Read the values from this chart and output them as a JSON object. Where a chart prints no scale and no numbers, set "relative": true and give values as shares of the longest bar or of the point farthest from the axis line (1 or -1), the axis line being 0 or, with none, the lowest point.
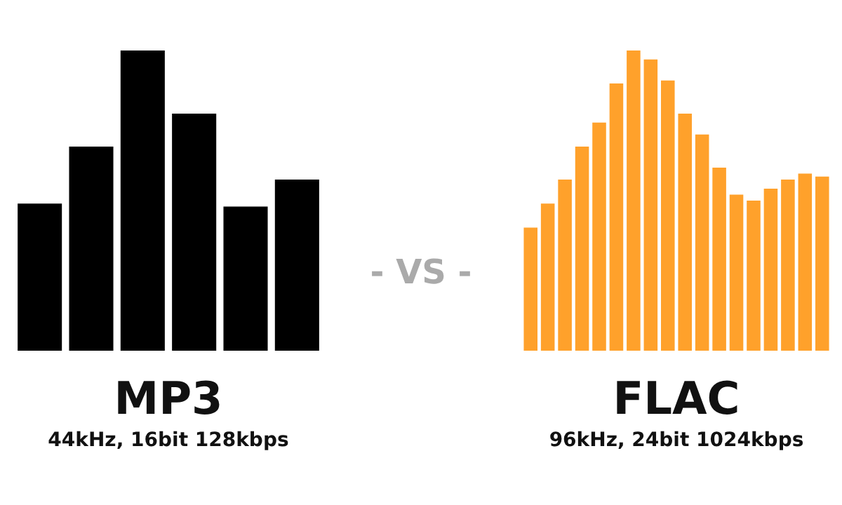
{
  "chart_data": [
    {
      "type": "bar",
      "title": "MP3",
      "subtitle": "44kHz, 16bit 128kbps",
      "relative": true,
      "tick_labels": false,
      "categories": [
        null,
        null,
        null,
        null,
        null,
        null
      ],
      "color": "#000000",
      "values": [
        0.49,
        0.68,
        1,
        0.79,
        0.48,
        0.57
      ],
      "annotations": [
        "- VS -"
      ]
    },
    {
      "type": "bar",
      "title": "FLAC",
      "subtitle": "96kHz, 24bit 1024kbps",
      "relative": true,
      "tick_labels": false,
      "categories": [
        null,
        null,
        null,
        null,
        null,
        null,
        null,
        null,
        null,
        null,
        null,
        null,
        null,
        null,
        null,
        null,
        null,
        null
      ],
      "color": "#ffa12b",
      "values": [
        0.41,
        0.49,
        0.57,
        0.68,
        0.76,
        0.89,
        1,
        0.97,
        0.9,
        0.79,
        0.72,
        0.61,
        0.52,
        0.5,
        0.54,
        0.57,
        0.59,
        0.58
      ]
    }
  ]
}
